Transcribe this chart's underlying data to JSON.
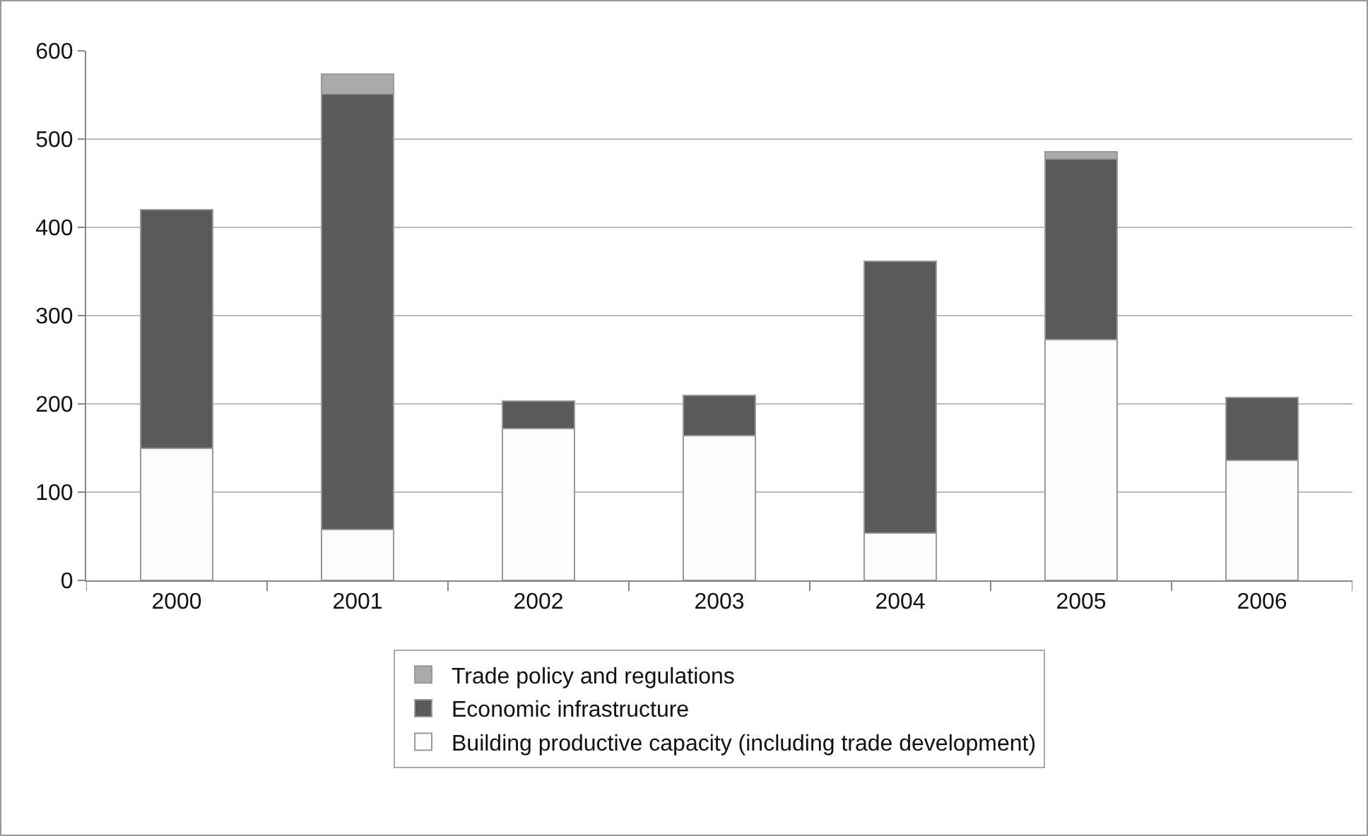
{
  "chart_data": {
    "type": "bar",
    "stacked": true,
    "categories": [
      "2000",
      "2001",
      "2002",
      "2003",
      "2004",
      "2005",
      "2006"
    ],
    "series": [
      {
        "name": "Building productive capacity (including trade development)",
        "color": "#fcfcfc",
        "values": [
          150,
          58,
          172,
          164,
          54,
          273,
          136
        ]
      },
      {
        "name": "Economic infrastructure",
        "color": "#5a5a5a",
        "values": [
          270,
          493,
          31,
          46,
          308,
          205,
          71
        ]
      },
      {
        "name": "Trade policy and regulations",
        "color": "#aaaaaa",
        "values": [
          null,
          23,
          null,
          null,
          null,
          8,
          null
        ]
      }
    ],
    "ylim": [
      0,
      600
    ],
    "yticks": [
      0,
      100,
      200,
      300,
      400,
      500,
      600
    ],
    "grid": "y",
    "legend": "bottom"
  }
}
